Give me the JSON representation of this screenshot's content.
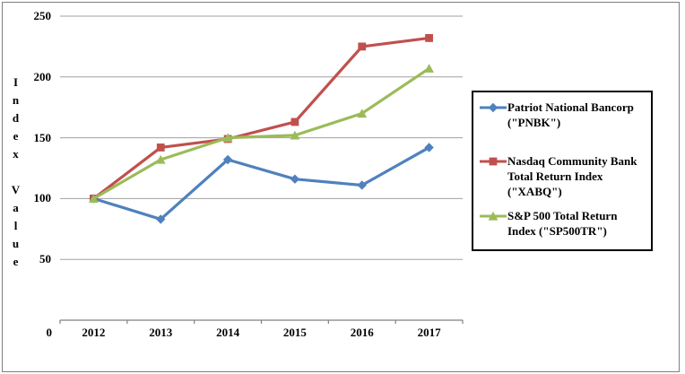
{
  "window": {
    "background_color": "#FFFFFF",
    "frame_border_color": "#808080"
  },
  "chart_data": {
    "type": "line",
    "title": "",
    "xlabel": "",
    "ylabel": "Index Value",
    "categories": [
      "2012",
      "2013",
      "2014",
      "2015",
      "2016",
      "2017"
    ],
    "y_ticks": [
      0,
      50,
      100,
      150,
      200,
      250
    ],
    "ylim": [
      0,
      250
    ],
    "grid": true,
    "grid_color": "#A0A0A0",
    "axis_color": "#808080",
    "legend_position": "right",
    "series": [
      {
        "name": "Patriot National Bancorp (\"PNBK\")",
        "legend_lines": [
          "Patriot National Bancorp",
          "(\"PNBK\")"
        ],
        "color": "#4F81BD",
        "marker": "diamond",
        "values": [
          100,
          83,
          132,
          116,
          111,
          142
        ]
      },
      {
        "name": "Nasdaq Community Bank Total Return Index (\"XABQ\")",
        "legend_lines": [
          "Nasdaq Community Bank",
          "Total Return Index",
          "(\"XABQ\")"
        ],
        "color": "#C0504D",
        "marker": "square",
        "values": [
          100,
          142,
          149,
          163,
          225,
          232
        ]
      },
      {
        "name": "S&P 500 Total Return Index (\"SP500TR\")",
        "legend_lines": [
          "S&P 500 Total Return",
          "Index (\"SP500TR\")"
        ],
        "color": "#9BBB59",
        "marker": "triangle",
        "values": [
          100,
          132,
          150,
          152,
          170,
          207
        ]
      }
    ]
  }
}
